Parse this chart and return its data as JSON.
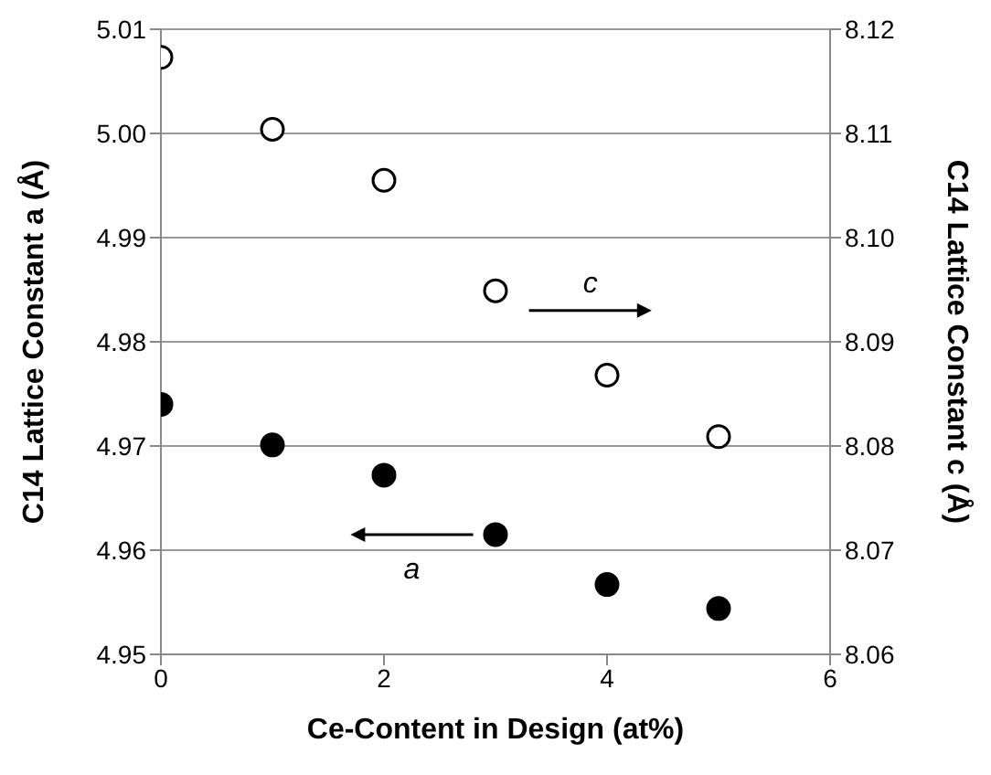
{
  "chart_data": {
    "type": "scatter",
    "xlabel": "Ce-Content in Design (at%)",
    "ylabel": "C14 Lattice Constant a (Å)",
    "y2label": "C14 Lattice Constant c (Å)",
    "x": [
      0,
      1,
      2,
      3,
      4,
      5
    ],
    "series": [
      {
        "color": "#000000",
        "values": [
          4.974,
          4.9701,
          4.9672,
          4.9615,
          4.9567,
          4.9544
        ]
      },
      {
        "color": "#000000",
        "axis": "y2",
        "values": [
          8.1173,
          8.1104,
          8.1055,
          8.0949,
          8.0868,
          8.0809
        ]
      }
    ],
    "xlim": [
      0,
      6
    ],
    "xticks": [
      0,
      2,
      4,
      6
    ],
    "ylim": [
      4.95,
      5.01
    ],
    "yticks": [
      4.95,
      4.96,
      4.97,
      4.98,
      4.99,
      {
        "value": 5,
        "label": "5.00"
      },
      5.01
    ],
    "y2lim": [
      8.06,
      8.12
    ],
    "y2ticks": [
      8.06,
      8.07,
      8.08,
      8.09,
      {
        "value": 8.1,
        "label": "8.10"
      },
      8.11,
      8.12
    ],
    "grid": "y",
    "marker": "circle",
    "annotations": [
      "c",
      "a"
    ]
  }
}
